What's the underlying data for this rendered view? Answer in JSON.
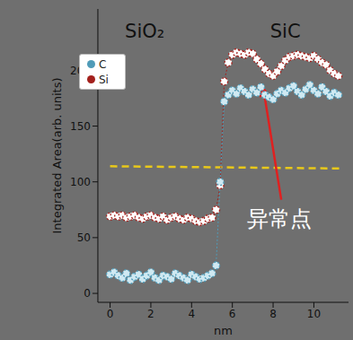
{
  "chart_data": {
    "type": "line",
    "x_label": "nm",
    "y_label": "Integrated Area(arb. units)",
    "x": [
      0,
      0.2,
      0.4,
      0.6,
      0.8,
      1,
      1.2,
      1.4,
      1.6,
      1.8,
      2,
      2.2,
      2.4,
      2.6,
      2.8,
      3,
      3.2,
      3.4,
      3.6,
      3.8,
      4,
      4.2,
      4.4,
      4.6,
      4.8,
      5,
      5.2,
      5.4,
      5.6,
      5.8,
      6,
      6.2,
      6.4,
      6.6,
      6.8,
      7,
      7.2,
      7.4,
      7.6,
      7.8,
      8,
      8.2,
      8.4,
      8.6,
      8.8,
      9,
      9.2,
      9.4,
      9.6,
      9.8,
      10,
      10.2,
      10.4,
      10.6,
      10.8,
      11,
      11.2
    ],
    "series": [
      {
        "name": "Si",
        "color": "#a3201c",
        "marker": "o",
        "line_style": "dotted",
        "values": [
          69,
          70,
          69,
          70,
          68,
          69,
          70,
          68,
          67,
          69,
          70,
          68,
          67,
          69,
          66,
          68,
          69,
          67,
          66,
          68,
          67,
          65,
          64,
          65,
          67,
          68,
          75,
          97,
          190,
          207,
          214,
          216,
          215,
          214,
          216,
          215,
          210,
          206,
          201,
          197,
          195,
          199,
          204,
          209,
          212,
          213,
          214,
          213,
          212,
          211,
          213,
          210,
          207,
          205,
          200,
          197,
          195
        ]
      },
      {
        "name": "C",
        "color": "#4f9bb8",
        "marker": "o",
        "line_style": "dotted",
        "values": [
          17,
          19,
          16,
          14,
          18,
          12,
          15,
          17,
          13,
          16,
          19,
          14,
          12,
          16,
          15,
          13,
          18,
          16,
          14,
          12,
          17,
          15,
          13,
          14,
          16,
          18,
          25,
          100,
          172,
          178,
          182,
          179,
          184,
          181,
          178,
          183,
          180,
          185,
          178,
          176,
          174,
          179,
          182,
          180,
          184,
          186,
          181,
          178,
          183,
          187,
          182,
          179,
          185,
          181,
          177,
          180,
          178
        ]
      }
    ],
    "xlim": [
      -0.6,
      11.7
    ],
    "ylim": [
      -8,
      255
    ],
    "xticks": [
      0,
      2,
      4,
      6,
      8,
      10
    ],
    "yticks": [
      0,
      50,
      100,
      150,
      200
    ],
    "legend": "upper left",
    "threshold_line": {
      "x": [
        0,
        11.4
      ],
      "y": [
        114,
        112
      ],
      "color": "#e8c81a",
      "line_style": "dashed"
    },
    "region_labels": [
      {
        "text": "SiO₂",
        "x": 1.7,
        "y": 235
      },
      {
        "text": "SiC",
        "x": 8.6,
        "y": 235
      }
    ],
    "annotation": {
      "text": "异常点",
      "x": 8.3,
      "y": 67,
      "color": "#e02020",
      "arrow_from": [
        8.4,
        84
      ],
      "arrow_to": [
        7.5,
        186
      ]
    }
  }
}
